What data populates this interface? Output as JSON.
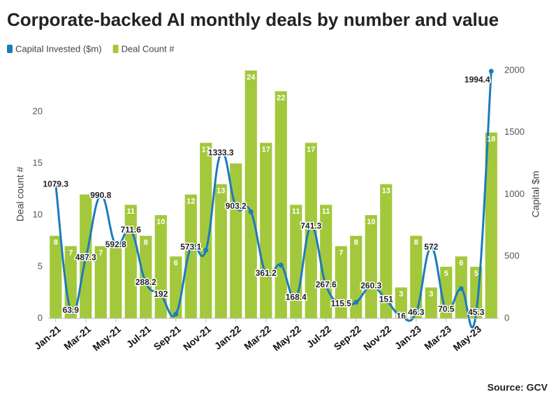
{
  "chart_data": {
    "type": "combo",
    "title": "Corporate-backed AI monthly deals by number and value",
    "source": "Source: GCV",
    "y_label": "Deal count #",
    "y2_label": "Capital $m",
    "grid": false,
    "legend": "top-left",
    "categories": [
      "Jan-21",
      null,
      "Mar-21",
      null,
      "May-21",
      null,
      "Jul-21",
      null,
      "Sep-21",
      null,
      "Nov-21",
      null,
      "Jan-22",
      null,
      "Mar-22",
      null,
      "May-22",
      null,
      "Jul-22",
      null,
      "Sep-22",
      null,
      "Nov-22",
      null,
      "Jan-23",
      null,
      "Mar-23",
      null,
      "May-23",
      null
    ],
    "ylim": [
      0,
      24
    ],
    "yticks": [
      0,
      5,
      10,
      15,
      20
    ],
    "y2lim": [
      0,
      2000
    ],
    "y2ticks": [
      0,
      500,
      1000,
      1500,
      2000
    ],
    "series": [
      {
        "name": "Capital Invested ($m)",
        "type": "line",
        "axis": "y2",
        "color": "#1b7bbd",
        "values": [
          1079.3,
          63.9,
          487.3,
          990.8,
          592.8,
          711.6,
          288.2,
          192,
          35,
          573.1,
          550,
          1333.3,
          903.2,
          860,
          361.2,
          430,
          168.4,
          741.3,
          267.6,
          115.5,
          130,
          260.3,
          151,
          16,
          46.3,
          572,
          70.5,
          240,
          45.3,
          1994.4
        ],
        "value_labels": [
          "1079.3",
          "63.9",
          "487.3",
          "990.8",
          "592.8",
          "711.6",
          "288.2",
          "192",
          null,
          "573.1",
          null,
          "1333.3",
          "903.2",
          null,
          "361.2",
          null,
          "168.4",
          "741.3",
          "267.6",
          "115.5",
          null,
          "260.3",
          "151",
          "16",
          "46.3",
          "572",
          "70.5",
          null,
          "45.3",
          "1994.4"
        ]
      },
      {
        "name": "Deal Count #",
        "type": "bar",
        "color": "#a3c83b",
        "values": [
          8,
          7,
          12,
          7,
          7,
          11,
          8,
          10,
          6,
          12,
          17,
          13,
          15,
          24,
          17,
          22,
          11,
          17,
          11,
          7,
          8,
          10,
          13,
          3,
          8,
          3,
          5,
          6,
          5,
          18
        ],
        "value_labels": [
          "8",
          "7",
          null,
          "7",
          null,
          "11",
          "8",
          "10",
          "6",
          "12",
          "17",
          "13",
          null,
          "24",
          "17",
          "22",
          "11",
          "17",
          "11",
          "7",
          "8",
          "10",
          "13",
          "3",
          "8",
          "3",
          "5",
          "6",
          "5",
          "18"
        ]
      }
    ]
  }
}
